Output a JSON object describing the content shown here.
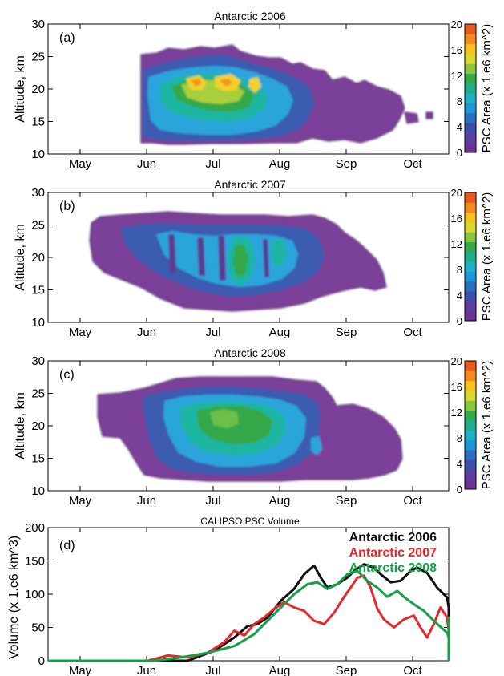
{
  "chart_data": [
    {
      "type": "heatmap",
      "panel_label": "(a)",
      "title": "Antarctic 2006",
      "ylabel": "Altitude, km",
      "ylim": [
        10,
        30
      ],
      "yticks": [
        "10",
        "15",
        "20",
        "25",
        "30"
      ],
      "xticks": [
        "May",
        "Jun",
        "Jul",
        "Aug",
        "Sep",
        "Oct"
      ],
      "colorbar": {
        "label": "PSC Area (x 1.e6 km^2)",
        "ticks": [
          "0",
          "4",
          "8",
          "12",
          "16",
          "20"
        ],
        "range": [
          0,
          20
        ]
      },
      "active_period": [
        "Jun 1",
        "Sep 25"
      ],
      "peak": {
        "month": "Jul",
        "altitude_km": 20.5,
        "area": 17
      }
    },
    {
      "type": "heatmap",
      "panel_label": "(b)",
      "title": "Antarctic 2007",
      "ylabel": "Altitude, km",
      "ylim": [
        10,
        30
      ],
      "yticks": [
        "10",
        "15",
        "20",
        "25",
        "30"
      ],
      "xticks": [
        "May",
        "Jun",
        "Jul",
        "Aug",
        "Sep",
        "Oct"
      ],
      "colorbar": {
        "label": "PSC Area (x 1.e6 km^2)",
        "ticks": [
          "0",
          "4",
          "8",
          "12",
          "16",
          "20"
        ],
        "range": [
          0,
          20
        ]
      },
      "active_period": [
        "May 20",
        "Sep 12"
      ],
      "peak": {
        "month": "Jul",
        "altitude_km": 19,
        "area": 11
      }
    },
    {
      "type": "heatmap",
      "panel_label": "(c)",
      "title": "Antarctic 2008",
      "ylabel": "Altitude, km",
      "ylim": [
        10,
        30
      ],
      "yticks": [
        "10",
        "15",
        "20",
        "25",
        "30"
      ],
      "xticks": [
        "May",
        "Jun",
        "Jul",
        "Aug",
        "Sep",
        "Oct"
      ],
      "colorbar": {
        "label": "PSC Area (x 1.e6 km^2)",
        "ticks": [
          "0",
          "4",
          "8",
          "12",
          "16",
          "20"
        ],
        "range": [
          0,
          20
        ]
      },
      "active_period": [
        "May 28",
        "Sep 15"
      ],
      "peak": {
        "month": "Jul",
        "altitude_km": 20,
        "area": 11
      }
    },
    {
      "type": "line",
      "panel_label": "(d)",
      "title": "CALIPSO PSC Volume",
      "ylabel": "Volume (x 1.e6 km^3)",
      "ylim": [
        0,
        200
      ],
      "yticks": [
        "0",
        "50",
        "100",
        "150",
        "200"
      ],
      "xticks": [
        "May",
        "Jun",
        "Jul",
        "Aug",
        "Sep",
        "Oct"
      ],
      "series": [
        {
          "name": "Antarctic 2006",
          "color": "#111111",
          "points": [
            [
              0,
              0
            ],
            [
              2.1,
              0
            ],
            [
              2.5,
              15
            ],
            [
              2.8,
              35
            ],
            [
              3,
              52
            ],
            [
              3.15,
              55
            ],
            [
              3.3,
              65
            ],
            [
              3.5,
              90
            ],
            [
              3.7,
              108
            ],
            [
              3.85,
              130
            ],
            [
              4,
              143
            ],
            [
              4.1,
              125
            ],
            [
              4.2,
              110
            ],
            [
              4.35,
              115
            ],
            [
              4.5,
              125
            ],
            [
              4.6,
              135
            ],
            [
              4.75,
              145
            ],
            [
              4.9,
              140
            ],
            [
              5,
              130
            ],
            [
              5.15,
              118
            ],
            [
              5.3,
              120
            ],
            [
              5.45,
              135
            ],
            [
              5.55,
              140
            ],
            [
              5.7,
              132
            ],
            [
              5.85,
              110
            ],
            [
              6,
              95
            ],
            [
              6.2,
              80
            ],
            [
              6.4,
              62
            ],
            [
              6.55,
              42
            ],
            [
              6.7,
              28
            ],
            [
              6.85,
              18
            ],
            [
              7,
              22
            ],
            [
              7.15,
              28
            ],
            [
              7.3,
              18
            ],
            [
              7.5,
              8
            ],
            [
              7.7,
              5
            ],
            [
              7.9,
              0
            ],
            [
              10,
              0
            ]
          ]
        },
        {
          "name": "Antarctic 2007",
          "color": "#e8262b",
          "points": [
            [
              0,
              0
            ],
            [
              1.5,
              0
            ],
            [
              1.8,
              8
            ],
            [
              2.1,
              5
            ],
            [
              2.4,
              12
            ],
            [
              2.65,
              28
            ],
            [
              2.8,
              45
            ],
            [
              2.95,
              38
            ],
            [
              3.1,
              55
            ],
            [
              3.25,
              65
            ],
            [
              3.4,
              78
            ],
            [
              3.55,
              88
            ],
            [
              3.7,
              80
            ],
            [
              3.85,
              75
            ],
            [
              4,
              60
            ],
            [
              4.15,
              55
            ],
            [
              4.3,
              72
            ],
            [
              4.45,
              96
            ],
            [
              4.55,
              110
            ],
            [
              4.65,
              125
            ],
            [
              4.75,
              128
            ],
            [
              4.85,
              110
            ],
            [
              4.95,
              78
            ],
            [
              5.05,
              62
            ],
            [
              5.2,
              50
            ],
            [
              5.35,
              62
            ],
            [
              5.5,
              68
            ],
            [
              5.6,
              50
            ],
            [
              5.7,
              35
            ],
            [
              5.8,
              55
            ],
            [
              5.9,
              80
            ],
            [
              6,
              65
            ],
            [
              6.15,
              45
            ],
            [
              6.3,
              35
            ],
            [
              6.45,
              30
            ],
            [
              6.6,
              22
            ],
            [
              6.8,
              25
            ],
            [
              7,
              30
            ],
            [
              7.15,
              20
            ],
            [
              7.3,
              8
            ],
            [
              7.6,
              0
            ],
            [
              10,
              0
            ]
          ]
        },
        {
          "name": "Antarctic 2008",
          "color": "#12a14a",
          "points": [
            [
              0,
              0
            ],
            [
              1.6,
              0
            ],
            [
              2,
              5
            ],
            [
              2.4,
              12
            ],
            [
              2.8,
              22
            ],
            [
              3.1,
              40
            ],
            [
              3.3,
              60
            ],
            [
              3.5,
              80
            ],
            [
              3.7,
              100
            ],
            [
              3.9,
              115
            ],
            [
              4.05,
              118
            ],
            [
              4.2,
              108
            ],
            [
              4.35,
              115
            ],
            [
              4.5,
              130
            ],
            [
              4.65,
              135
            ],
            [
              4.8,
              120
            ],
            [
              4.95,
              110
            ],
            [
              5.1,
              96
            ],
            [
              5.25,
              105
            ],
            [
              5.35,
              96
            ],
            [
              5.5,
              85
            ],
            [
              5.65,
              75
            ],
            [
              5.8,
              60
            ],
            [
              6,
              42
            ],
            [
              6.2,
              35
            ],
            [
              6.4,
              42
            ],
            [
              6.55,
              55
            ],
            [
              6.7,
              65
            ],
            [
              6.8,
              50
            ],
            [
              6.95,
              28
            ],
            [
              7.1,
              18
            ],
            [
              7.25,
              10
            ],
            [
              7.45,
              5
            ],
            [
              7.7,
              2
            ],
            [
              8,
              0
            ],
            [
              10,
              0
            ]
          ]
        }
      ]
    }
  ]
}
